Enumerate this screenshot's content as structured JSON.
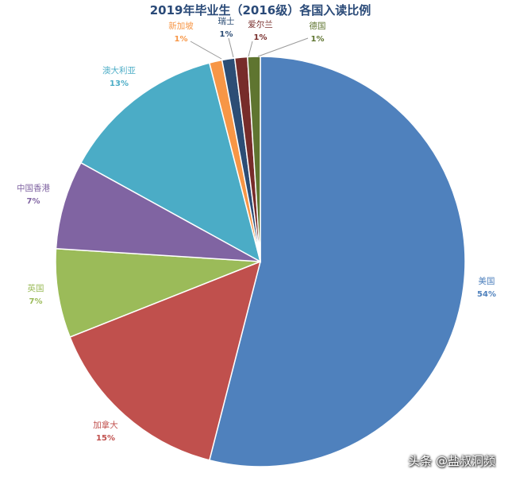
{
  "chart_data": {
    "type": "pie",
    "title": "2019年毕业生（2016级）各国入读比例",
    "slices": [
      {
        "label": "美国",
        "value": 54,
        "display": "54%",
        "color": "#4f81bd",
        "label_color": "#4f81bd"
      },
      {
        "label": "加拿大",
        "value": 15,
        "display": "15%",
        "color": "#c0504d",
        "label_color": "#c0504d"
      },
      {
        "label": "英国",
        "value": 7,
        "display": "7%",
        "color": "#9bbb59",
        "label_color": "#9bbb59"
      },
      {
        "label": "中国香港",
        "value": 7,
        "display": "7%",
        "color": "#8064a2",
        "label_color": "#8064a2"
      },
      {
        "label": "澳大利亚",
        "value": 13,
        "display": "13%",
        "color": "#4bacc6",
        "label_color": "#4bacc6"
      },
      {
        "label": "新加坡",
        "value": 1,
        "display": "1%",
        "color": "#f79646",
        "label_color": "#f79646"
      },
      {
        "label": "瑞士",
        "value": 1,
        "display": "1%",
        "color": "#2c4d75",
        "label_color": "#2c4d75"
      },
      {
        "label": "爱尔兰",
        "value": 1,
        "display": "1%",
        "color": "#772c2a",
        "label_color": "#772c2a"
      },
      {
        "label": "德国",
        "value": 1,
        "display": "1%",
        "color": "#5f7530",
        "label_color": "#5f7530"
      }
    ],
    "legend": "none",
    "start": "top, clockwise"
  },
  "watermark": "头条 @盐叔洞频"
}
